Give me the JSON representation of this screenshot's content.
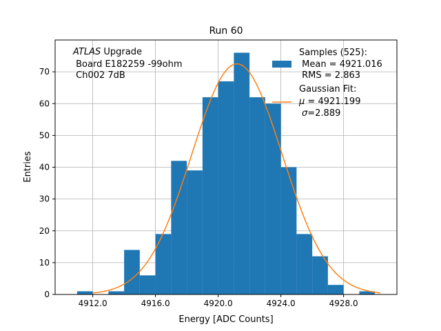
{
  "chart_data": {
    "type": "bar",
    "title": "Run 60",
    "xlabel": "Energy [ADC Counts]",
    "ylabel": "Entries",
    "xlim": [
      4909.6,
      4931.4
    ],
    "ylim": [
      0,
      80
    ],
    "xticks": [
      "4912.0",
      "4916.0",
      "4920.0",
      "4924.0",
      "4928.0"
    ],
    "xtick_values": [
      4912,
      4916,
      4920,
      4924,
      4928
    ],
    "yticks": [
      "0",
      "10",
      "20",
      "30",
      "40",
      "50",
      "60",
      "70"
    ],
    "ytick_values": [
      0,
      10,
      20,
      30,
      40,
      50,
      60,
      70
    ],
    "grid": true,
    "bin_start": 4911.0,
    "bin_width": 1.0,
    "values": [
      1,
      0,
      1,
      14,
      6,
      19,
      42,
      39,
      62,
      67,
      76,
      62,
      60,
      40,
      19,
      12,
      3,
      0,
      1
    ],
    "fit": {
      "mu": 4921.199,
      "sigma": 2.889,
      "amplitude": 72.5
    },
    "bar_color": "#1f77b4",
    "fit_color": "#ff7f0e",
    "annotation": {
      "italic": "ATLAS",
      "rest": " Upgrade",
      "line2": " Board E182259 -99ohm",
      "line3": " Ch002 7dB"
    },
    "legend": {
      "placement": "top-right",
      "samples": [
        "Samples (525):",
        " Mean = 4921.016",
        " RMS = 2.863"
      ],
      "fit_title": "Gaussian Fit:",
      "mu_symbol": "μ",
      "mu_rest": " = 4921.199",
      "sigma_symbol": "σ",
      "sigma_rest": "=2.889"
    }
  }
}
